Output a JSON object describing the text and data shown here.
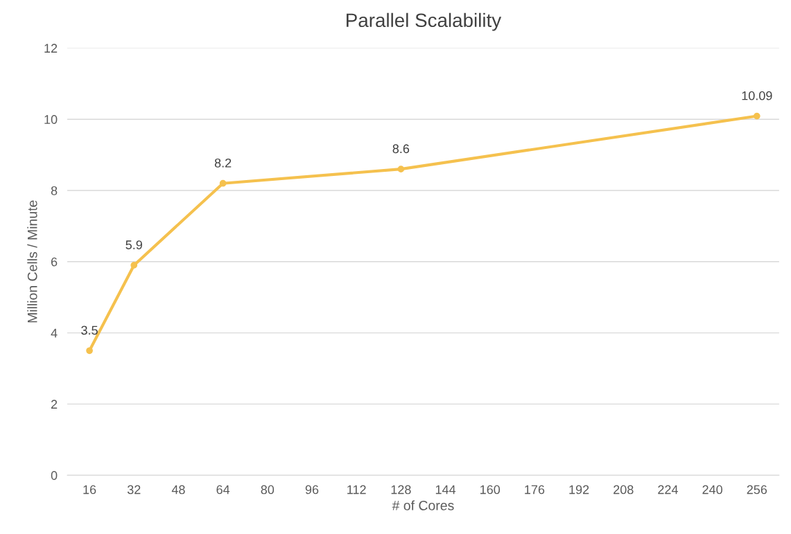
{
  "chart_data": {
    "type": "line",
    "title": "Parallel Scalability",
    "xlabel": "# of Cores",
    "ylabel": "Million Cells / Minute",
    "x": [
      16,
      32,
      64,
      128,
      256
    ],
    "series": [
      {
        "color": "#f5c14e",
        "values": [
          3.5,
          5.9,
          8.2,
          8.6,
          10.09
        ]
      }
    ],
    "xlim": [
      8,
      264
    ],
    "xticks": [
      16,
      32,
      48,
      64,
      80,
      96,
      112,
      128,
      144,
      160,
      176,
      192,
      208,
      224,
      240,
      256
    ],
    "ylim": [
      0,
      12
    ],
    "yticks": [
      0,
      2,
      4,
      6,
      8,
      10,
      12
    ],
    "grid": "y",
    "marker": "circle",
    "line_style": "solid",
    "data_labels": true
  }
}
